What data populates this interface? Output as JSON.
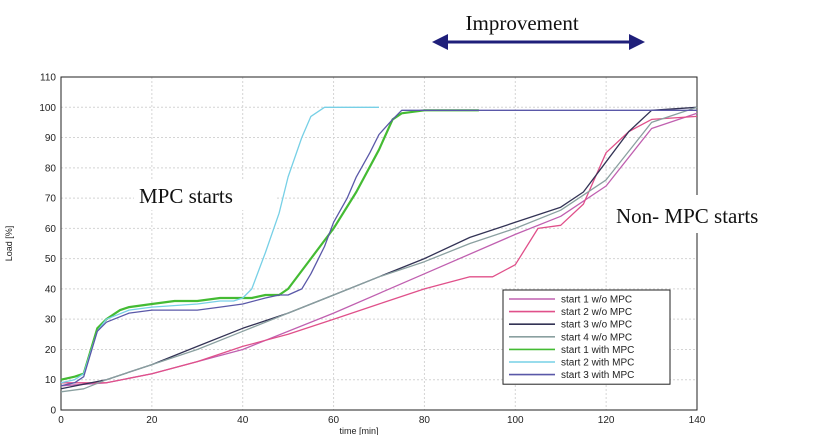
{
  "chart_data": {
    "type": "line",
    "title": "",
    "xlabel": "time [min]",
    "ylabel": "Load [%]",
    "xlim": [
      0,
      140
    ],
    "ylim": [
      0,
      110
    ],
    "xticks": [
      0,
      20,
      40,
      60,
      80,
      100,
      120,
      140
    ],
    "yticks": [
      0,
      10,
      20,
      30,
      40,
      50,
      60,
      70,
      80,
      90,
      100,
      110
    ],
    "grid": true,
    "legend_position": "bottom-right",
    "series": [
      {
        "name": "start 1 w/o MPC",
        "color": "#c060b0",
        "x": [
          0,
          10,
          20,
          40,
          60,
          80,
          100,
          110,
          120,
          130,
          140
        ],
        "y": [
          8,
          9,
          12,
          20,
          32,
          45,
          58,
          64,
          74,
          93,
          98
        ]
      },
      {
        "name": "start 2 w/o MPC",
        "color": "#e0508a",
        "x": [
          0,
          10,
          20,
          30,
          40,
          50,
          60,
          70,
          80,
          90,
          95,
          100,
          105,
          110,
          115,
          120,
          125,
          130,
          140
        ],
        "y": [
          9,
          9,
          12,
          16,
          21,
          25,
          30,
          35,
          40,
          44,
          44,
          48,
          60,
          61,
          68,
          85,
          92,
          96,
          97
        ]
      },
      {
        "name": "start 3 w/o MPC",
        "color": "#333355",
        "x": [
          0,
          10,
          20,
          30,
          40,
          50,
          60,
          70,
          80,
          90,
          100,
          110,
          115,
          120,
          125,
          130,
          140
        ],
        "y": [
          7,
          10,
          15,
          21,
          27,
          32,
          38,
          44,
          50,
          57,
          62,
          67,
          72,
          82,
          92,
          99,
          100
        ]
      },
      {
        "name": "start 4 w/o MPC",
        "color": "#8aa0a0",
        "x": [
          0,
          5,
          10,
          20,
          30,
          40,
          50,
          60,
          70,
          80,
          90,
          100,
          110,
          120,
          130,
          140
        ],
        "y": [
          6,
          7,
          10,
          15,
          20,
          26,
          32,
          38,
          44,
          49,
          55,
          60,
          66,
          76,
          95,
          100
        ]
      },
      {
        "name": "start 1 with MPC",
        "color": "#44bb33",
        "x": [
          0,
          3,
          5,
          8,
          10,
          13,
          15,
          20,
          25,
          30,
          35,
          40,
          42,
          45,
          48,
          50,
          55,
          60,
          65,
          70,
          73,
          75,
          80,
          85,
          90,
          92
        ],
        "y": [
          10,
          11,
          12,
          27,
          30,
          33,
          34,
          35,
          36,
          36,
          37,
          37,
          37,
          38,
          38,
          40,
          50,
          60,
          72,
          86,
          96,
          98,
          99,
          99,
          99,
          99
        ]
      },
      {
        "name": "start 2 with MPC",
        "color": "#77d0e6",
        "x": [
          0,
          3,
          5,
          8,
          10,
          15,
          20,
          30,
          35,
          38,
          40,
          42,
          45,
          48,
          50,
          53,
          55,
          58,
          60,
          65,
          70
        ],
        "y": [
          9,
          10,
          12,
          26,
          30,
          33,
          34,
          35,
          36,
          36,
          37,
          40,
          52,
          65,
          77,
          90,
          97,
          100,
          100,
          100,
          100
        ]
      },
      {
        "name": "start 3 with MPC",
        "color": "#5a58a8",
        "x": [
          0,
          3,
          5,
          8,
          10,
          15,
          20,
          25,
          30,
          35,
          40,
          45,
          48,
          50,
          53,
          55,
          58,
          60,
          63,
          65,
          68,
          70,
          73,
          75,
          80,
          90,
          100,
          110,
          120,
          130,
          140
        ],
        "y": [
          8,
          9,
          11,
          26,
          29,
          32,
          33,
          33,
          33,
          34,
          35,
          37,
          38,
          38,
          40,
          45,
          54,
          62,
          70,
          77,
          85,
          91,
          96,
          99,
          99,
          99,
          99,
          99,
          99,
          99,
          99
        ]
      }
    ],
    "annotations": [
      {
        "text": "Improvement",
        "arrow": "double-horizontal",
        "arrow_color": "#1f1f7a",
        "from_x": 80,
        "to_x": 123
      },
      {
        "text": "MPC starts"
      },
      {
        "text": "Non- MPC starts"
      }
    ]
  }
}
